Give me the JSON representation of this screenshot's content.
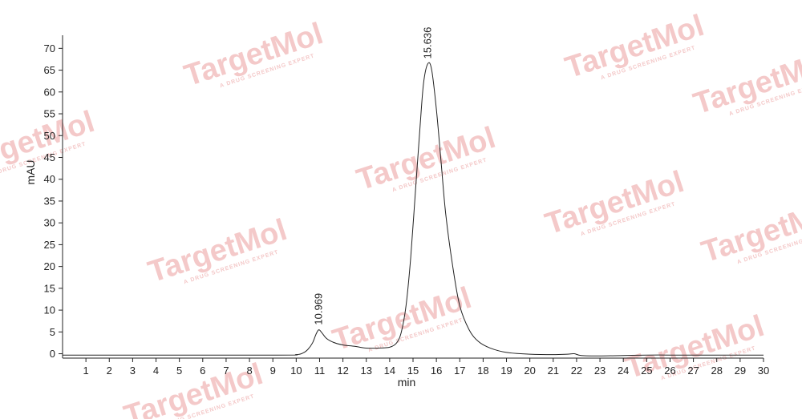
{
  "watermark": {
    "brand": "TargetMol",
    "tagline": "A DRUG SCREENING EXPERT"
  },
  "chart_data": {
    "type": "line",
    "title": "",
    "xlabel": "min",
    "ylabel": "mAU",
    "xlim": [
      0,
      30
    ],
    "ylim": [
      -1,
      73
    ],
    "x_ticks": [
      1,
      2,
      3,
      4,
      5,
      6,
      7,
      8,
      9,
      10,
      11,
      12,
      13,
      14,
      15,
      16,
      17,
      18,
      19,
      20,
      21,
      22,
      23,
      24,
      25,
      26,
      27,
      28,
      29,
      30
    ],
    "y_ticks": [
      0,
      5,
      10,
      15,
      20,
      25,
      30,
      35,
      40,
      45,
      50,
      55,
      60,
      65,
      70
    ],
    "grid": false,
    "series": [
      {
        "x": [
          0,
          9,
          10.0,
          10.3,
          10.5,
          10.7,
          10.85,
          10.969,
          11.1,
          11.3,
          11.6,
          12.0,
          12.5,
          13.0,
          13.5,
          14.0,
          14.3,
          14.5,
          14.7,
          14.9,
          15.1,
          15.3,
          15.45,
          15.636,
          15.8,
          16.0,
          16.2,
          16.4,
          16.7,
          17.0,
          17.4,
          17.8,
          18.3,
          19.0,
          20.0,
          21.0,
          21.6,
          21.9,
          22.2,
          23.0,
          24.0,
          25.0,
          26.0,
          27.0,
          28.0,
          29.0,
          30.0
        ],
        "y": [
          -0.3,
          -0.3,
          -0.2,
          0.2,
          1.0,
          2.5,
          4.5,
          5.5,
          4.8,
          3.5,
          2.6,
          2.0,
          1.7,
          1.3,
          1.3,
          1.5,
          2.5,
          5.0,
          11.0,
          22.0,
          37.0,
          52.0,
          62.0,
          66.5,
          65.0,
          56.0,
          44.0,
          32.0,
          20.0,
          11.0,
          5.5,
          2.8,
          1.3,
          0.3,
          -0.1,
          -0.2,
          -0.1,
          0.0,
          -0.4,
          -0.5,
          -0.4,
          -0.3,
          -0.3,
          -0.3,
          -0.3,
          -0.3,
          -0.3
        ]
      }
    ],
    "annotations": [
      {
        "text": "10.969",
        "x": 10.969,
        "y": 5.5
      },
      {
        "text": "15.636",
        "x": 15.636,
        "y": 66.5
      }
    ]
  }
}
